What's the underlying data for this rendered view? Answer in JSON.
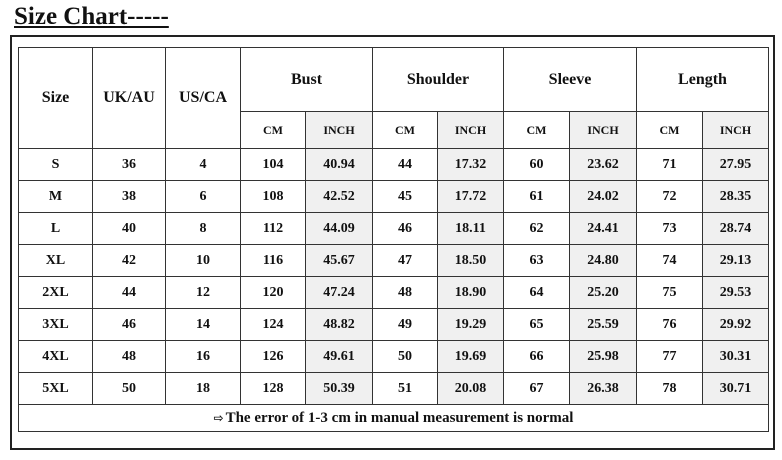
{
  "title": "Size Chart-----",
  "table": {
    "headers": [
      "Size",
      "UK/AU",
      "US/CA",
      "Bust",
      "Shoulder",
      "Sleeve",
      "Length"
    ],
    "subheaders": [
      "CM",
      "INCH",
      "CM",
      "INCH",
      "CM",
      "INCH",
      "CM",
      "INCH"
    ],
    "rows": [
      [
        "S",
        "36",
        "4",
        "104",
        "40.94",
        "44",
        "17.32",
        "60",
        "23.62",
        "71",
        "27.95"
      ],
      [
        "M",
        "38",
        "6",
        "108",
        "42.52",
        "45",
        "17.72",
        "61",
        "24.02",
        "72",
        "28.35"
      ],
      [
        "L",
        "40",
        "8",
        "112",
        "44.09",
        "46",
        "18.11",
        "62",
        "24.41",
        "73",
        "28.74"
      ],
      [
        "XL",
        "42",
        "10",
        "116",
        "45.67",
        "47",
        "18.50",
        "63",
        "24.80",
        "74",
        "29.13"
      ],
      [
        "2XL",
        "44",
        "12",
        "120",
        "47.24",
        "48",
        "18.90",
        "64",
        "25.20",
        "75",
        "29.53"
      ],
      [
        "3XL",
        "46",
        "14",
        "124",
        "48.82",
        "49",
        "19.29",
        "65",
        "25.59",
        "76",
        "29.92"
      ],
      [
        "4XL",
        "48",
        "16",
        "126",
        "49.61",
        "50",
        "19.69",
        "66",
        "25.98",
        "77",
        "30.31"
      ],
      [
        "5XL",
        "50",
        "18",
        "128",
        "50.39",
        "51",
        "20.08",
        "67",
        "26.38",
        "78",
        "30.71"
      ]
    ],
    "note": "The error of 1-3 cm in manual measurement is normal"
  }
}
